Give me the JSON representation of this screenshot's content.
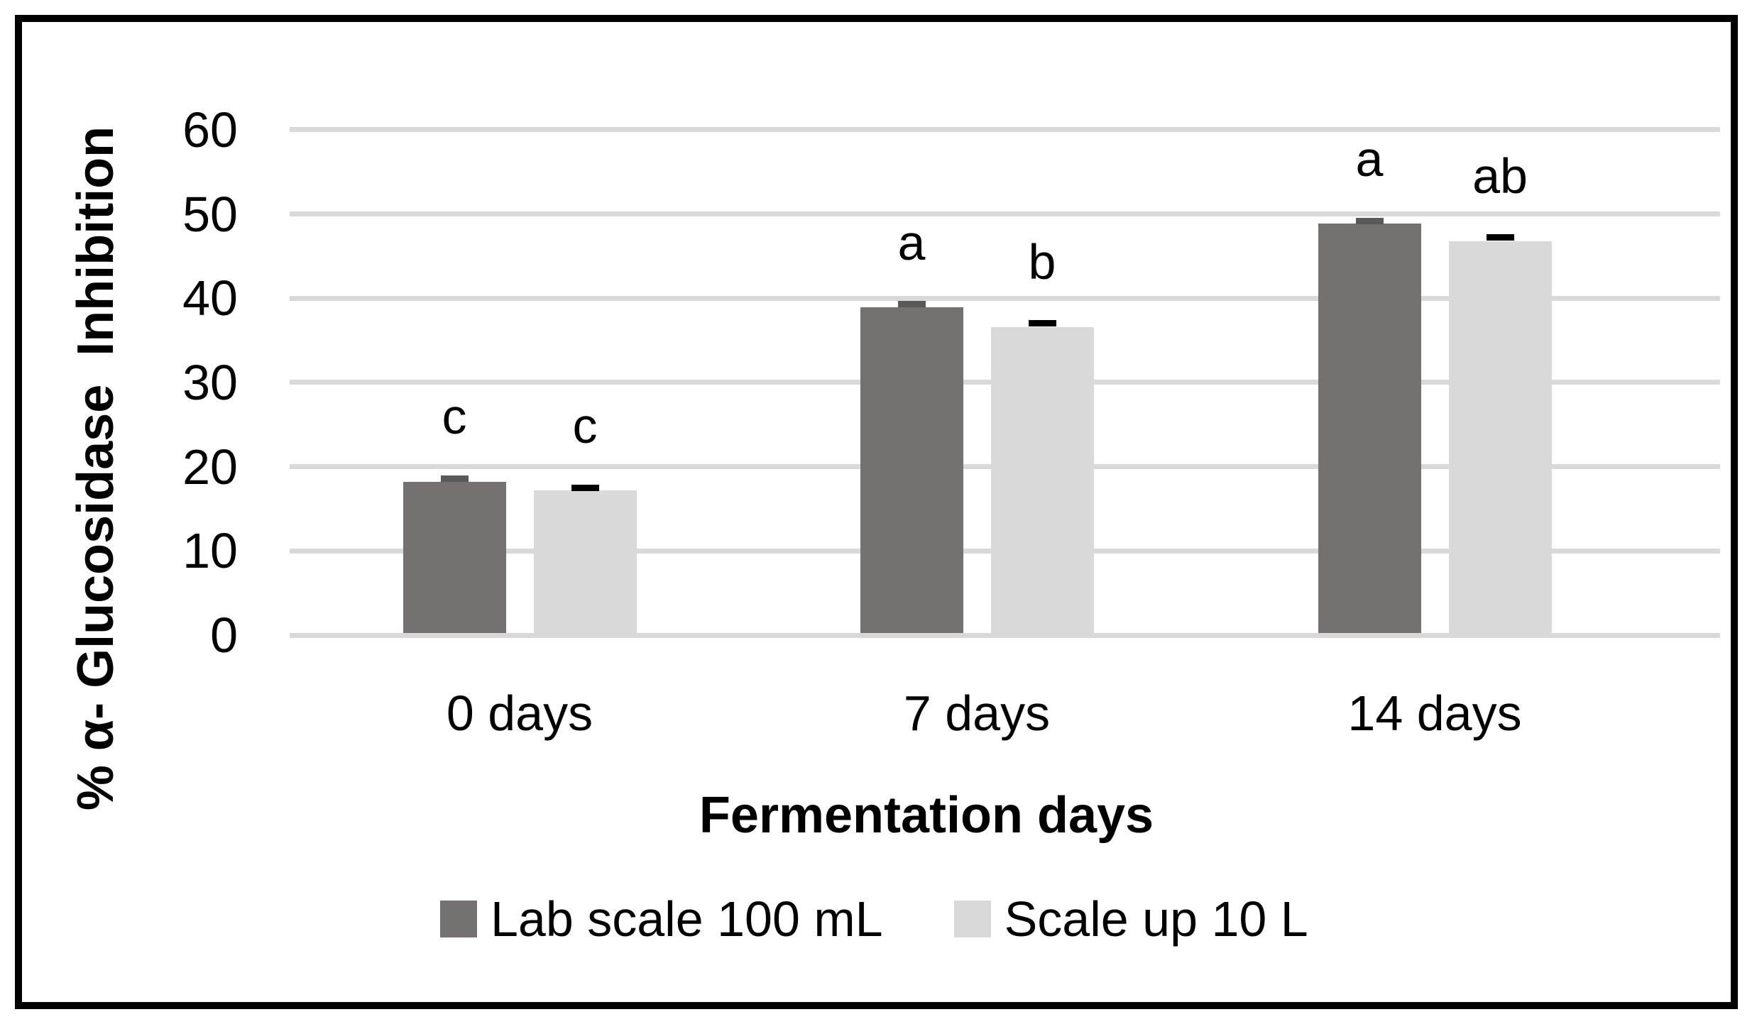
{
  "figure": {
    "background": "#ffffff",
    "border_color": "#000000"
  },
  "colors": {
    "gridline": "#d9d9d9",
    "text": "#000000"
  },
  "chart_data": {
    "type": "bar",
    "title": "",
    "xlabel": "Fermentation days",
    "ylabel": "% α- Glucosidase  Inhibition",
    "categories": [
      "0 days",
      "7 days",
      "14 days"
    ],
    "series": [
      {
        "name": "Lab scale 100 mL",
        "color": "#757171",
        "values": [
          18.2,
          38.9,
          48.9
        ],
        "errors": [
          0.4,
          0.4,
          0.3
        ],
        "error_color": "#595959",
        "sig_letters": [
          "c",
          "a",
          "a"
        ]
      },
      {
        "name": "Scale up 10 L",
        "color": "#d9d9d9",
        "values": [
          17.2,
          36.6,
          46.8
        ],
        "errors": [
          0.3,
          0.4,
          0.4
        ],
        "error_color": "#000000",
        "sig_letters": [
          "c",
          "b",
          "ab"
        ]
      }
    ],
    "ylim": [
      0,
      60
    ],
    "yticks": [
      0,
      10,
      20,
      30,
      40,
      50,
      60
    ],
    "grid": true,
    "legend_position": "bottom"
  }
}
